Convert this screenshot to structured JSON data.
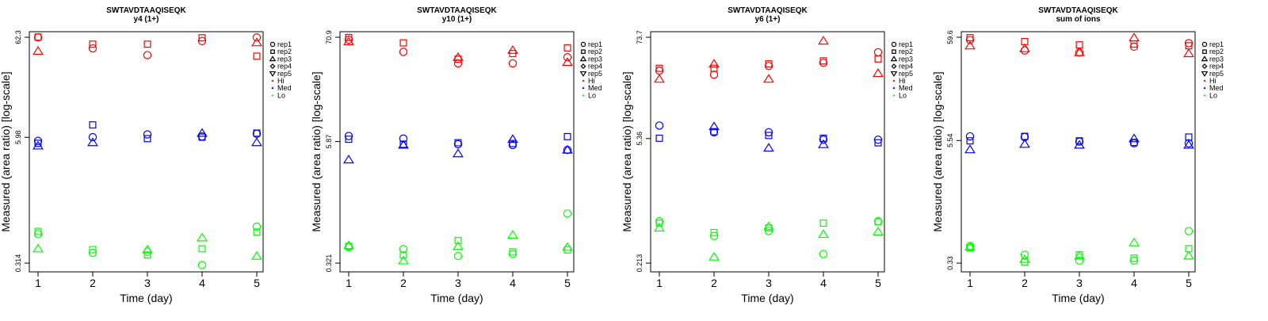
{
  "colors": {
    "Hi": "#ff0000",
    "Med": "#0000ff",
    "Lo": "#00ff00"
  },
  "chart_data": [
    {
      "type": "scatter",
      "title": "SWTAVDTAAQISEQK",
      "subtitle": "y4 (1+)",
      "xlabel": "Time (day)",
      "ylabel": "Measured (area ratio) [log-scale]",
      "y_scale": "log",
      "x_ticks": [
        1,
        2,
        3,
        4,
        5
      ],
      "y_ticks": [
        "0.314",
        "5.98",
        "62.3"
      ],
      "legend": {
        "position": "right",
        "entries": [
          "rep1",
          "rep2",
          "rep3",
          "rep4",
          "rep5",
          "Hi",
          "Med",
          "Lo"
        ]
      },
      "series": [
        {
          "name": "Hi",
          "color": "#ff0000",
          "points": [
            [
              1,
              "rep1",
              62.0
            ],
            [
              1,
              "rep2",
              62.5
            ],
            [
              1,
              "rep3",
              45.0
            ],
            [
              2,
              "rep1",
              48.0
            ],
            [
              2,
              "rep2",
              53.0
            ],
            [
              3,
              "rep1",
              41.0
            ],
            [
              3,
              "rep2",
              53.0
            ],
            [
              4,
              "rep1",
              57.0
            ],
            [
              4,
              "rep2",
              61.5
            ],
            [
              5,
              "rep1",
              62.0
            ],
            [
              5,
              "rep2",
              40.0
            ],
            [
              5,
              "rep3",
              55.0
            ]
          ]
        },
        {
          "name": "Med",
          "color": "#0000ff",
          "points": [
            [
              1,
              "rep1",
              5.5
            ],
            [
              1,
              "rep2",
              5.2
            ],
            [
              1,
              "rep3",
              4.9
            ],
            [
              2,
              "rep1",
              6.0
            ],
            [
              2,
              "rep2",
              8.0
            ],
            [
              2,
              "rep3",
              5.3
            ],
            [
              3,
              "rep1",
              6.4
            ],
            [
              3,
              "rep2",
              5.8
            ],
            [
              4,
              "rep1",
              6.1
            ],
            [
              4,
              "rep2",
              6.0
            ],
            [
              4,
              "rep3",
              6.6
            ],
            [
              5,
              "rep1",
              6.5
            ],
            [
              5,
              "rep2",
              6.6
            ],
            [
              5,
              "rep3",
              5.3
            ]
          ]
        },
        {
          "name": "Lo",
          "color": "#00ff00",
          "points": [
            [
              1,
              "rep1",
              0.62
            ],
            [
              1,
              "rep2",
              0.66
            ],
            [
              1,
              "rep3",
              0.44
            ],
            [
              2,
              "rep1",
              0.4
            ],
            [
              2,
              "rep2",
              0.43
            ],
            [
              3,
              "rep1",
              0.41
            ],
            [
              3,
              "rep2",
              0.38
            ],
            [
              3,
              "rep3",
              0.43
            ],
            [
              4,
              "rep1",
              0.3
            ],
            [
              4,
              "rep2",
              0.44
            ],
            [
              4,
              "rep3",
              0.57
            ],
            [
              5,
              "rep1",
              0.74
            ],
            [
              5,
              "rep2",
              0.65
            ],
            [
              5,
              "rep3",
              0.37
            ]
          ]
        }
      ]
    },
    {
      "type": "scatter",
      "title": "SWTAVDTAAQISEQK",
      "subtitle": "y10 (1+)",
      "xlabel": "Time (day)",
      "ylabel": "Measured (area ratio) [log-scale]",
      "y_scale": "log",
      "x_ticks": [
        1,
        2,
        3,
        4,
        5
      ],
      "y_ticks": [
        "0.321",
        "5.87",
        "70.9"
      ],
      "legend": {
        "position": "right",
        "entries": [
          "rep1",
          "rep2",
          "rep3",
          "rep4",
          "rep5",
          "Hi",
          "Med",
          "Lo"
        ]
      },
      "series": [
        {
          "name": "Hi",
          "color": "#ff0000",
          "points": [
            [
              1,
              "rep1",
              67.0
            ],
            [
              1,
              "rep2",
              70.5
            ],
            [
              1,
              "rep3",
              64.0
            ],
            [
              2,
              "rep1",
              50.0
            ],
            [
              2,
              "rep2",
              62.0
            ],
            [
              3,
              "rep1",
              38.0
            ],
            [
              3,
              "rep2",
              42.0
            ],
            [
              3,
              "rep3",
              44.0
            ],
            [
              4,
              "rep1",
              38.0
            ],
            [
              4,
              "rep2",
              48.0
            ],
            [
              4,
              "rep3",
              52.0
            ],
            [
              5,
              "rep1",
              44.0
            ],
            [
              5,
              "rep2",
              55.0
            ],
            [
              5,
              "rep3",
              39.0
            ]
          ]
        },
        {
          "name": "Med",
          "color": "#0000ff",
          "points": [
            [
              1,
              "rep1",
              6.7
            ],
            [
              1,
              "rep2",
              6.2
            ],
            [
              1,
              "rep3",
              3.8
            ],
            [
              2,
              "rep1",
              6.3
            ],
            [
              2,
              "rep2",
              5.5
            ],
            [
              2,
              "rep3",
              5.4
            ],
            [
              3,
              "rep1",
              5.5
            ],
            [
              3,
              "rep2",
              5.7
            ],
            [
              3,
              "rep3",
              4.4
            ],
            [
              4,
              "rep1",
              5.4
            ],
            [
              4,
              "rep2",
              5.6
            ],
            [
              4,
              "rep3",
              6.2
            ],
            [
              5,
              "rep1",
              4.8
            ],
            [
              5,
              "rep2",
              6.6
            ],
            [
              5,
              "rep3",
              4.8
            ]
          ]
        },
        {
          "name": "Lo",
          "color": "#00ff00",
          "points": [
            [
              1,
              "rep1",
              0.47
            ],
            [
              1,
              "rep2",
              0.48
            ],
            [
              1,
              "rep3",
              0.49
            ],
            [
              2,
              "rep1",
              0.45
            ],
            [
              2,
              "rep2",
              0.39
            ],
            [
              2,
              "rep3",
              0.34
            ],
            [
              3,
              "rep1",
              0.38
            ],
            [
              3,
              "rep2",
              0.55
            ],
            [
              3,
              "rep3",
              0.48
            ],
            [
              4,
              "rep1",
              0.4
            ],
            [
              4,
              "rep2",
              0.42
            ],
            [
              4,
              "rep3",
              0.63
            ],
            [
              5,
              "rep1",
              1.05
            ],
            [
              5,
              "rep2",
              0.44
            ],
            [
              5,
              "rep3",
              0.47
            ]
          ]
        }
      ]
    },
    {
      "type": "scatter",
      "title": "SWTAVDTAAQISEQK",
      "subtitle": "y6 (1+)",
      "xlabel": "Time (day)",
      "ylabel": "Measured (area ratio) [log-scale]",
      "y_scale": "log",
      "x_ticks": [
        1,
        2,
        3,
        4,
        5
      ],
      "y_ticks": [
        "0.213",
        "5.36",
        "73.7"
      ],
      "legend": {
        "position": "right",
        "entries": [
          "rep1",
          "rep2",
          "rep3",
          "rep4",
          "rep5",
          "Hi",
          "Med",
          "Lo"
        ]
      },
      "series": [
        {
          "name": "Hi",
          "color": "#ff0000",
          "points": [
            [
              1,
              "rep1",
              31.0
            ],
            [
              1,
              "rep2",
              33.0
            ],
            [
              1,
              "rep3",
              25.0
            ],
            [
              2,
              "rep1",
              28.0
            ],
            [
              2,
              "rep2",
              33.0
            ],
            [
              2,
              "rep3",
              37.0
            ],
            [
              3,
              "rep1",
              35.0
            ],
            [
              3,
              "rep2",
              37.0
            ],
            [
              3,
              "rep3",
              25.0
            ],
            [
              4,
              "rep1",
              38.0
            ],
            [
              4,
              "rep2",
              40.0
            ],
            [
              4,
              "rep3",
              67.0
            ],
            [
              5,
              "rep1",
              50.0
            ],
            [
              5,
              "rep2",
              42.0
            ],
            [
              5,
              "rep3",
              29.0
            ]
          ]
        },
        {
          "name": "Med",
          "color": "#0000ff",
          "points": [
            [
              1,
              "rep1",
              7.5
            ],
            [
              1,
              "rep2",
              5.4
            ],
            [
              2,
              "rep1",
              6.3
            ],
            [
              2,
              "rep2",
              6.4
            ],
            [
              2,
              "rep3",
              7.3
            ],
            [
              3,
              "rep1",
              6.3
            ],
            [
              3,
              "rep2",
              5.8
            ],
            [
              3,
              "rep3",
              4.2
            ],
            [
              4,
              "rep1",
              5.2
            ],
            [
              4,
              "rep2",
              5.4
            ],
            [
              4,
              "rep3",
              4.6
            ],
            [
              5,
              "rep1",
              5.2
            ],
            [
              5,
              "rep2",
              4.8
            ]
          ]
        },
        {
          "name": "Lo",
          "color": "#00ff00",
          "points": [
            [
              1,
              "rep1",
              0.63
            ],
            [
              1,
              "rep2",
              0.6
            ],
            [
              1,
              "rep3",
              0.53
            ],
            [
              2,
              "rep1",
              0.43
            ],
            [
              2,
              "rep2",
              0.47
            ],
            [
              2,
              "rep3",
              0.25
            ],
            [
              3,
              "rep1",
              0.49
            ],
            [
              3,
              "rep2",
              0.53
            ],
            [
              3,
              "rep3",
              0.55
            ],
            [
              4,
              "rep1",
              0.27
            ],
            [
              4,
              "rep2",
              0.6
            ],
            [
              4,
              "rep3",
              0.45
            ],
            [
              5,
              "rep1",
              0.63
            ],
            [
              5,
              "rep2",
              0.62
            ],
            [
              5,
              "rep3",
              0.48
            ]
          ]
        }
      ]
    },
    {
      "type": "scatter",
      "title": "SWTAVDTAAQISEQK",
      "subtitle": "sum of ions",
      "xlabel": "Time (day)",
      "ylabel": "Measured (area ratio) [log-scale]",
      "y_scale": "log",
      "x_ticks": [
        1,
        2,
        3,
        4,
        5
      ],
      "y_ticks": [
        "0.33",
        "5.54",
        "59.6"
      ],
      "legend": {
        "position": "right",
        "entries": [
          "rep1",
          "rep2",
          "rep3",
          "rep4",
          "rep5",
          "Hi",
          "Med",
          "Lo"
        ]
      },
      "series": [
        {
          "name": "Hi",
          "color": "#ff0000",
          "points": [
            [
              1,
              "rep1",
              56.0
            ],
            [
              1,
              "rep2",
              59.0
            ],
            [
              1,
              "rep3",
              49.0
            ],
            [
              2,
              "rep1",
              44.0
            ],
            [
              2,
              "rep2",
              54.0
            ],
            [
              2,
              "rep3",
              46.0
            ],
            [
              3,
              "rep1",
              42.0
            ],
            [
              3,
              "rep2",
              50.0
            ],
            [
              3,
              "rep3",
              42.0
            ],
            [
              4,
              "rep1",
              48.0
            ],
            [
              4,
              "rep2",
              51.0
            ],
            [
              4,
              "rep3",
              59.0
            ],
            [
              5,
              "rep1",
              52.0
            ],
            [
              5,
              "rep2",
              49.0
            ],
            [
              5,
              "rep3",
              41.0
            ]
          ]
        },
        {
          "name": "Med",
          "color": "#0000ff",
          "points": [
            [
              1,
              "rep1",
              6.1
            ],
            [
              1,
              "rep2",
              5.5
            ],
            [
              1,
              "rep3",
              4.5
            ],
            [
              2,
              "rep1",
              6.0
            ],
            [
              2,
              "rep2",
              6.1
            ],
            [
              2,
              "rep3",
              5.1
            ],
            [
              3,
              "rep1",
              5.4
            ],
            [
              3,
              "rep2",
              5.5
            ],
            [
              3,
              "rep3",
              5.0
            ],
            [
              4,
              "rep1",
              5.2
            ],
            [
              4,
              "rep2",
              5.3
            ],
            [
              4,
              "rep3",
              5.8
            ],
            [
              5,
              "rep1",
              5.2
            ],
            [
              5,
              "rep2",
              6.0
            ],
            [
              5,
              "rep3",
              5.0
            ]
          ]
        },
        {
          "name": "Lo",
          "color": "#00ff00",
          "points": [
            [
              1,
              "rep1",
              0.49
            ],
            [
              1,
              "rep2",
              0.47
            ],
            [
              1,
              "rep3",
              0.48
            ],
            [
              2,
              "rep1",
              0.4
            ],
            [
              2,
              "rep2",
              0.34
            ],
            [
              2,
              "rep3",
              0.36
            ],
            [
              3,
              "rep1",
              0.35
            ],
            [
              3,
              "rep2",
              0.4
            ],
            [
              3,
              "rep3",
              0.39
            ],
            [
              4,
              "rep1",
              0.35
            ],
            [
              4,
              "rep2",
              0.37
            ],
            [
              4,
              "rep3",
              0.53
            ],
            [
              5,
              "rep1",
              0.69
            ],
            [
              5,
              "rep2",
              0.46
            ],
            [
              5,
              "rep3",
              0.39
            ]
          ]
        }
      ]
    }
  ]
}
